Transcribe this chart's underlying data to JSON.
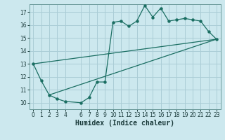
{
  "xlabel": "Humidex (Indice chaleur)",
  "bg_color": "#cce8ee",
  "grid_color": "#aacdd6",
  "line_color": "#1a6e62",
  "xlim": [
    -0.5,
    23.5
  ],
  "ylim": [
    9.5,
    17.6
  ],
  "xticks": [
    0,
    1,
    2,
    3,
    4,
    6,
    7,
    8,
    9,
    10,
    11,
    12,
    13,
    14,
    15,
    16,
    17,
    18,
    19,
    20,
    21,
    22,
    23
  ],
  "yticks": [
    10,
    11,
    12,
    13,
    14,
    15,
    16,
    17
  ],
  "line1_x": [
    0,
    1,
    2,
    3,
    4,
    6,
    7,
    8,
    9,
    10,
    11,
    12,
    13,
    14,
    15,
    16,
    17,
    18,
    19,
    20,
    21,
    22,
    23
  ],
  "line1_y": [
    13.0,
    11.7,
    10.6,
    10.3,
    10.1,
    10.0,
    10.4,
    11.6,
    11.6,
    16.2,
    16.3,
    15.9,
    16.3,
    17.5,
    16.6,
    17.3,
    16.3,
    16.4,
    16.5,
    16.4,
    16.3,
    15.5,
    14.9
  ],
  "line2_x": [
    2,
    23
  ],
  "line2_y": [
    10.6,
    14.9
  ],
  "line3_x": [
    0,
    23
  ],
  "line3_y": [
    13.0,
    14.9
  ],
  "tick_fontsize": 5.5,
  "xlabel_fontsize": 7
}
